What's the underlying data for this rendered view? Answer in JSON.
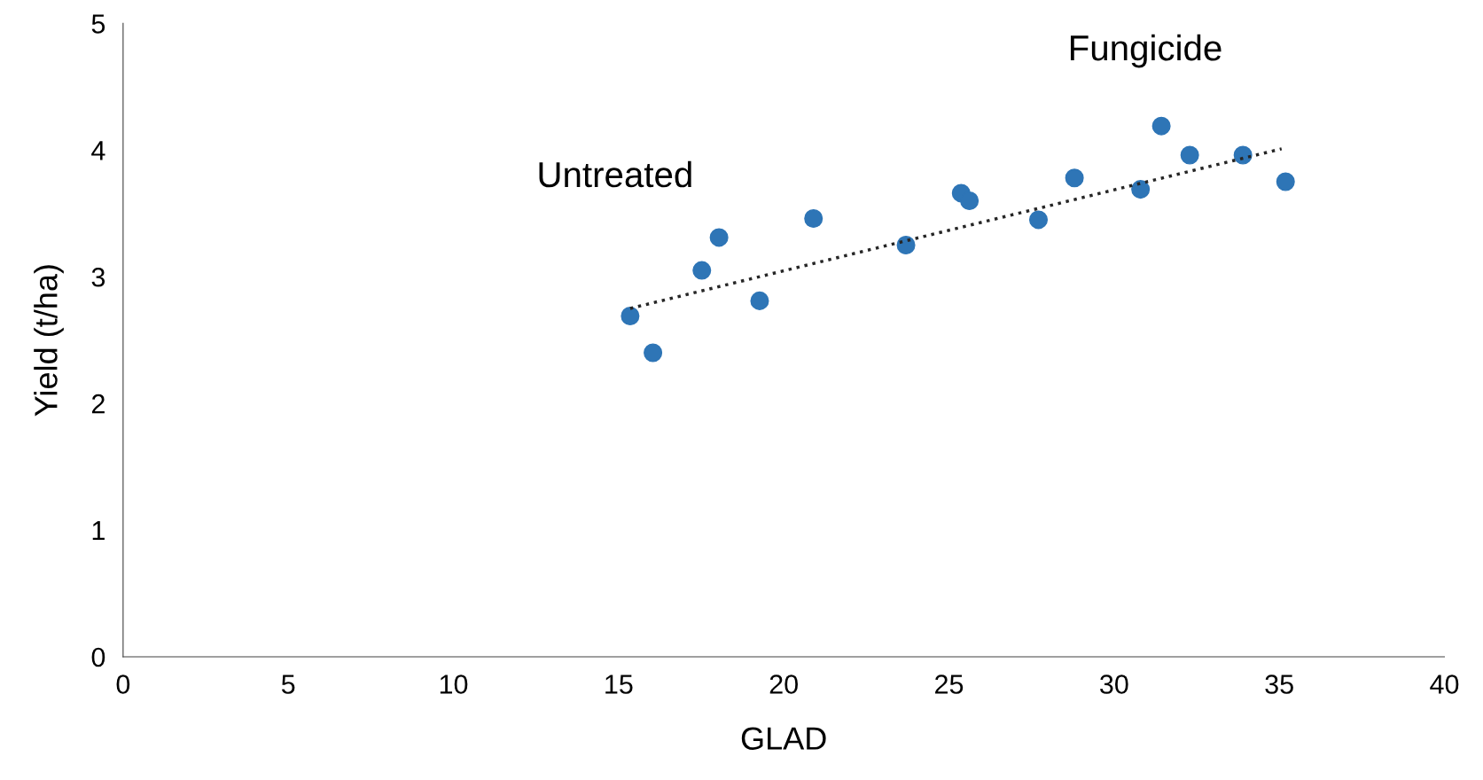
{
  "chart_data": {
    "type": "scatter",
    "xlabel": "GLAD",
    "ylabel": "Yield (t/ha)",
    "xlim": [
      0,
      40
    ],
    "xticks": [
      0,
      5,
      10,
      15,
      20,
      25,
      30,
      35,
      40
    ],
    "ylim": [
      0,
      5
    ],
    "yticks": [
      0,
      1,
      2,
      3,
      4,
      5
    ],
    "grid": false,
    "legend": false,
    "marker": "circle",
    "series": [
      {
        "color": "#2e75b6",
        "x": [
          15.35,
          16.04,
          17.52,
          18.04,
          19.27,
          20.9,
          23.7,
          25.37,
          25.62,
          27.71,
          28.8,
          30.8,
          31.43,
          32.29,
          33.9,
          35.19
        ],
        "values": [
          2.69,
          2.4,
          3.05,
          3.31,
          2.81,
          3.46,
          3.25,
          3.66,
          3.6,
          3.45,
          3.78,
          3.69,
          4.19,
          3.96,
          3.96,
          3.75
        ]
      },
      {
        "type": "line",
        "color": "#262626",
        "line_style": "dotted",
        "marker": "none",
        "x": [
          15.35,
          35.07
        ],
        "values": [
          2.75,
          4.01
        ]
      }
    ],
    "annotations": [
      "Untreated",
      "Fungicide"
    ]
  }
}
